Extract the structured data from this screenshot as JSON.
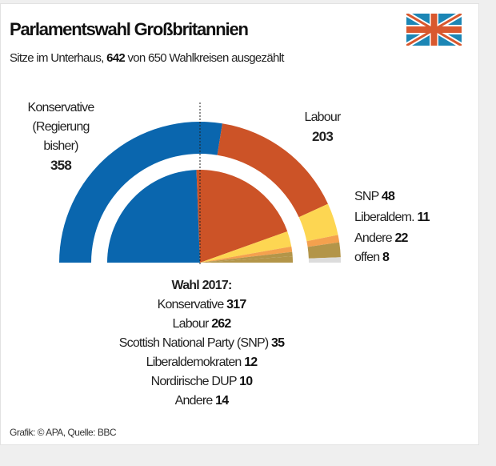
{
  "header": {
    "title": "Parlamentswahl Großbritannien",
    "subtitle_prefix": "Sitze im Unterhaus,",
    "subtitle_count": "642",
    "subtitle_suffix": "von 650 Wahlkreisen ausgezählt",
    "flag_icon": "union-jack-flag"
  },
  "chart_data": {
    "type": "pie",
    "subtype": "semicircle parliament (outer ring: current, inner half-pie: 2017)",
    "total_seats": 650,
    "current": {
      "series": [
        {
          "name": "Konservative",
          "label_lines": [
            "Konservative",
            "(Regierung",
            "bisher)"
          ],
          "value": 358,
          "color": "#0a66ae"
        },
        {
          "name": "Labour",
          "value": 203,
          "color": "#cc5327"
        },
        {
          "name": "SNP",
          "value": 48,
          "color": "#fdd652"
        },
        {
          "name": "Liberaldem.",
          "value": 11,
          "color": "#f4a14e"
        },
        {
          "name": "Andere",
          "value": 22,
          "color": "#b39549"
        },
        {
          "name": "offen",
          "value": 8,
          "color": "#dcdcdc"
        }
      ]
    },
    "previous": {
      "title": "Wahl 2017:",
      "series": [
        {
          "name": "Konservative",
          "value": 317,
          "color": "#0a66ae"
        },
        {
          "name": "Labour",
          "value": 262,
          "color": "#cc5327"
        },
        {
          "name": "Scottish National Party (SNP)",
          "value": 35,
          "color": "#fdd652"
        },
        {
          "name": "Liberaldemokraten",
          "value": 12,
          "color": "#f4a14e"
        },
        {
          "name": "Nordirische DUP",
          "value": 10,
          "color": "#b39549"
        },
        {
          "name": "Andere",
          "value": 14,
          "color": "#b39549"
        }
      ]
    }
  },
  "footer": "Grafik: © APA, Quelle: BBC"
}
